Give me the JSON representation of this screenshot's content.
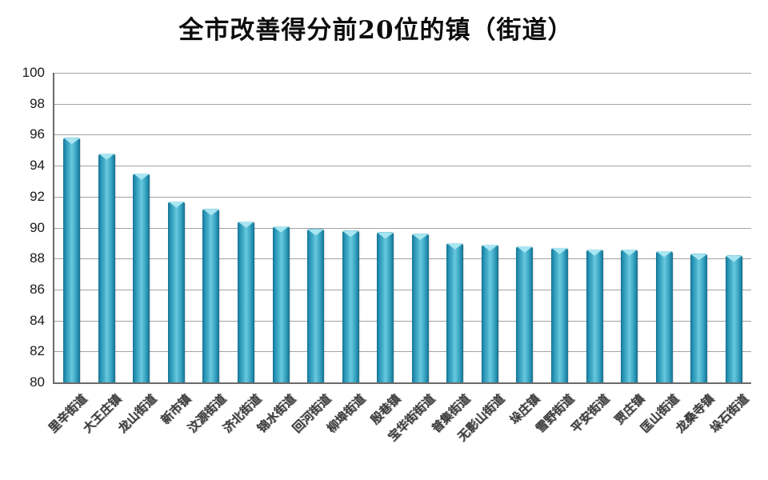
{
  "title": "全市改善得分前20位的镇（街道）",
  "chart_data": {
    "type": "bar",
    "title": "全市改善得分前20位的镇（街道）",
    "categories": [
      "里辛街道",
      "大王庄镇",
      "龙山街道",
      "新市镇",
      "汶源街道",
      "济北街道",
      "锦水街道",
      "回河街道",
      "柳埠街道",
      "殷巷镇",
      "宝华街街道",
      "普集街道",
      "无影山街道",
      "垛庄镇",
      "雪野街道",
      "平安街道",
      "贾庄镇",
      "匡山街道",
      "龙桑寺镇",
      "垛石街道"
    ],
    "values": [
      95.8,
      94.8,
      93.5,
      91.7,
      91.2,
      90.4,
      90.1,
      89.9,
      89.8,
      89.7,
      89.6,
      89.0,
      88.9,
      88.8,
      88.7,
      88.6,
      88.6,
      88.5,
      88.3,
      88.2
    ],
    "xlabel": "",
    "ylabel": "",
    "ylim": [
      80,
      100
    ],
    "yticks": [
      80,
      82,
      84,
      86,
      88,
      90,
      92,
      94,
      96,
      98,
      100
    ],
    "grid": true,
    "legend": "none",
    "colors": {
      "bar_main": "#2f9fbe",
      "bar_edge_dark": "#15718f",
      "bar_center_light": "#69cade",
      "bar_top_highlight": "#a9e6f1",
      "gridline": "#a3a3a3",
      "axis_line": "#6a6a6a",
      "title_text": "#0d0d0d",
      "tick_text": "#1a1a1a",
      "category_text": "#3c3c3c",
      "background": "#ffffff"
    }
  }
}
